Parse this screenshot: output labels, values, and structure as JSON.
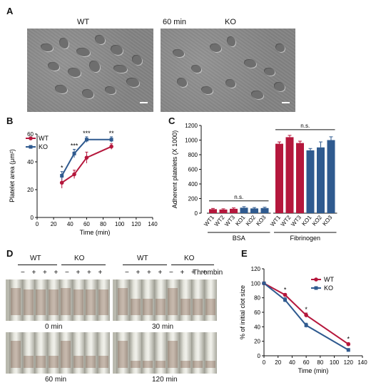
{
  "panels": {
    "A": {
      "letter": "A",
      "wt_label": "WT",
      "time_label": "60 min",
      "ko_label": "KO"
    },
    "B": {
      "letter": "B"
    },
    "C": {
      "letter": "C"
    },
    "D": {
      "letter": "D",
      "top_left": {
        "wt_label": "WT",
        "ko_label": "KO",
        "signs": [
          "−",
          "+",
          "+",
          "+",
          "−",
          "+",
          "+",
          "+"
        ]
      },
      "top_right": {
        "wt_label": "WT",
        "ko_label": "KO",
        "signs": [
          "−",
          "+",
          "+",
          "+",
          "−",
          "+",
          "+",
          "+"
        ]
      },
      "thrombin_label": "Thrombin",
      "photo_labels": [
        "0 min",
        "30 min",
        "60 min",
        "120 min"
      ]
    },
    "E": {
      "letter": "E"
    }
  },
  "colors": {
    "wt": "#b5173c",
    "ko": "#2f5a8f"
  },
  "chart_data": [
    {
      "id": "B",
      "type": "line",
      "xlabel": "Time (min)",
      "ylabel": "Platelet area (μm²)",
      "x_ticks": [
        0,
        20,
        40,
        60,
        80,
        100,
        120,
        140
      ],
      "y_ticks": [
        0,
        20,
        40,
        60
      ],
      "xlim": [
        0,
        140
      ],
      "ylim": [
        0,
        60
      ],
      "series": [
        {
          "name": "WT",
          "x": [
            30,
            45,
            60,
            90
          ],
          "y": [
            25,
            31,
            43,
            51
          ],
          "err": [
            4,
            3,
            4,
            2
          ]
        },
        {
          "name": "KO",
          "x": [
            30,
            45,
            60,
            90
          ],
          "y": [
            30,
            46,
            56,
            56
          ],
          "err": [
            3,
            3,
            2,
            2
          ]
        }
      ],
      "annotations": [
        {
          "x": 30,
          "text": "*"
        },
        {
          "x": 45,
          "text": "***"
        },
        {
          "x": 60,
          "text": "***"
        },
        {
          "x": 90,
          "text": "**"
        }
      ],
      "legend": "top-left"
    },
    {
      "id": "C",
      "type": "bar",
      "ylabel": "Adherent platelets (X 1000)",
      "y_ticks": [
        0,
        200,
        400,
        600,
        800,
        1000,
        1200
      ],
      "ylim": [
        0,
        1200
      ],
      "groups": [
        {
          "name": "BSA",
          "significance": "n.s.",
          "categories": [
            "WT1",
            "WT2",
            "WT3",
            "KO1",
            "KO2",
            "KO3"
          ],
          "values": [
            55,
            50,
            60,
            75,
            65,
            70
          ],
          "err": [
            10,
            10,
            12,
            15,
            12,
            12
          ]
        },
        {
          "name": "Fibrinogen",
          "significance": "n.s.",
          "categories": [
            "WT1",
            "WT2",
            "WT3",
            "KO1",
            "KO2",
            "KO3"
          ],
          "values": [
            950,
            1040,
            960,
            860,
            900,
            1000
          ],
          "err": [
            25,
            25,
            25,
            25,
            75,
            45
          ]
        }
      ],
      "colors_by_category": [
        "wt",
        "wt",
        "wt",
        "ko",
        "ko",
        "ko"
      ]
    },
    {
      "id": "E",
      "type": "line",
      "xlabel": "Time (min)",
      "ylabel": "% of initial clot size",
      "x_ticks": [
        0,
        20,
        40,
        60,
        80,
        100,
        120,
        140
      ],
      "y_ticks": [
        0,
        20,
        40,
        60,
        80,
        100,
        120
      ],
      "xlim": [
        0,
        140
      ],
      "ylim": [
        0,
        120
      ],
      "series": [
        {
          "name": "WT",
          "x": [
            0,
            30,
            60,
            120
          ],
          "y": [
            100,
            84,
            56,
            16
          ],
          "err": [
            1,
            2,
            3,
            2
          ]
        },
        {
          "name": "KO",
          "x": [
            0,
            30,
            60,
            120
          ],
          "y": [
            100,
            77,
            42,
            8
          ],
          "err": [
            1,
            3,
            3,
            2
          ]
        }
      ],
      "annotations": [
        {
          "x": 30,
          "text": "*"
        },
        {
          "x": 60,
          "text": "*"
        },
        {
          "x": 120,
          "text": "*"
        }
      ],
      "legend": "top-right"
    }
  ]
}
